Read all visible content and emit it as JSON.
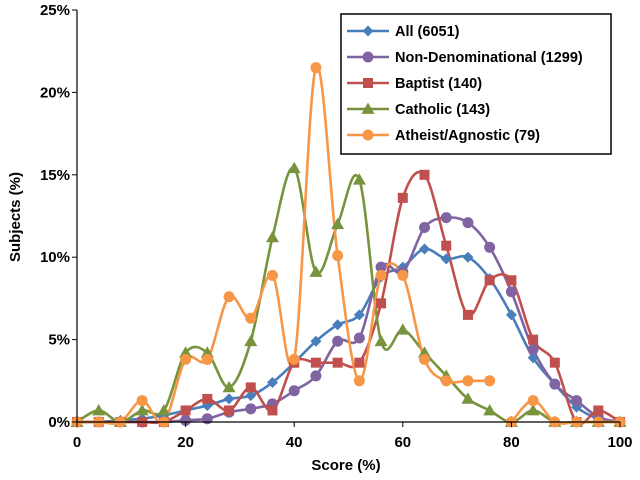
{
  "chart_data": {
    "type": "line",
    "xlabel": "Score (%)",
    "ylabel": "Subjects (%)",
    "xlim": [
      0,
      100
    ],
    "ylim": [
      0,
      25
    ],
    "x_ticks": [
      "0",
      "20",
      "40",
      "60",
      "80",
      "100"
    ],
    "y_ticks": [
      "0%",
      "5%",
      "10%",
      "15%",
      "20%",
      "25%"
    ],
    "smooth": true,
    "grid": false,
    "legend_position": "top-right",
    "series": [
      {
        "name": "All (6051)",
        "color": "#4a7ebb",
        "marker": "diamond",
        "x": [
          0,
          4,
          8,
          12,
          16,
          20,
          24,
          28,
          32,
          36,
          40,
          44,
          48,
          52,
          56,
          60,
          64,
          68,
          72,
          76,
          80,
          84,
          88,
          92,
          96,
          100
        ],
        "y": [
          0,
          0,
          0.1,
          0.2,
          0.4,
          0.7,
          1.0,
          1.4,
          1.6,
          2.4,
          3.6,
          4.9,
          5.9,
          6.5,
          8.8,
          9.4,
          10.5,
          9.9,
          10.0,
          8.7,
          6.5,
          3.9,
          2.3,
          0.9,
          0.2,
          0
        ]
      },
      {
        "name": "Non-Denominational (1299)",
        "color": "#8064a2",
        "marker": "circle",
        "x": [
          0,
          4,
          8,
          12,
          16,
          20,
          24,
          28,
          32,
          36,
          40,
          44,
          48,
          52,
          56,
          60,
          64,
          68,
          72,
          76,
          80,
          84,
          88,
          92,
          96,
          100
        ],
        "y": [
          0,
          0,
          0,
          0,
          0,
          0.1,
          0.2,
          0.6,
          0.8,
          1.1,
          1.9,
          2.8,
          4.9,
          5.1,
          9.4,
          9.1,
          11.8,
          12.4,
          12.1,
          10.6,
          7.9,
          4.4,
          2.3,
          1.3,
          0.3,
          0
        ]
      },
      {
        "name": "Baptist (140)",
        "color": "#c0504d",
        "marker": "square",
        "x": [
          0,
          4,
          8,
          12,
          16,
          20,
          24,
          28,
          32,
          36,
          40,
          44,
          48,
          52,
          56,
          60,
          64,
          68,
          72,
          76,
          80,
          84,
          88,
          92,
          96,
          100
        ],
        "y": [
          0,
          0,
          0,
          0,
          0,
          0.7,
          1.4,
          0.7,
          2.1,
          0.7,
          3.6,
          3.6,
          3.6,
          3.6,
          7.2,
          13.6,
          15.0,
          10.7,
          6.5,
          8.6,
          8.6,
          5.0,
          3.6,
          0,
          0.7,
          0
        ]
      },
      {
        "name": "Catholic (143)",
        "color": "#77933c",
        "marker": "triangle",
        "x": [
          0,
          4,
          8,
          12,
          16,
          20,
          24,
          28,
          32,
          36,
          40,
          44,
          48,
          52,
          56,
          60,
          64,
          68,
          72,
          76,
          80,
          84,
          88,
          92,
          96,
          100
        ],
        "y": [
          0,
          0.7,
          0,
          0.7,
          0.7,
          4.2,
          4.2,
          2.1,
          4.9,
          11.2,
          15.4,
          9.1,
          12.0,
          14.7,
          4.9,
          5.6,
          4.2,
          2.8,
          1.4,
          0.7,
          0,
          0.7,
          0,
          0,
          0,
          0
        ]
      },
      {
        "name": "Atheist/Agnostic (79)",
        "color": "#f79646",
        "marker": "circle",
        "x": [
          0,
          4,
          8,
          12,
          16,
          20,
          24,
          28,
          32,
          36,
          40,
          44,
          48,
          52,
          56,
          60,
          64,
          68,
          72,
          76
        ],
        "y": [
          0,
          0,
          0,
          1.3,
          0,
          3.8,
          3.8,
          7.6,
          6.3,
          8.9,
          3.8,
          21.5,
          10.1,
          2.5,
          8.9,
          8.9,
          3.8,
          2.5,
          2.5,
          2.5
        ]
      },
      {
        "name": "",
        "color": "#f79646",
        "marker": "circle",
        "x": [
          80,
          84,
          88,
          92,
          96,
          100
        ],
        "y": [
          0,
          1.3,
          0,
          0,
          0,
          0
        ]
      }
    ]
  }
}
